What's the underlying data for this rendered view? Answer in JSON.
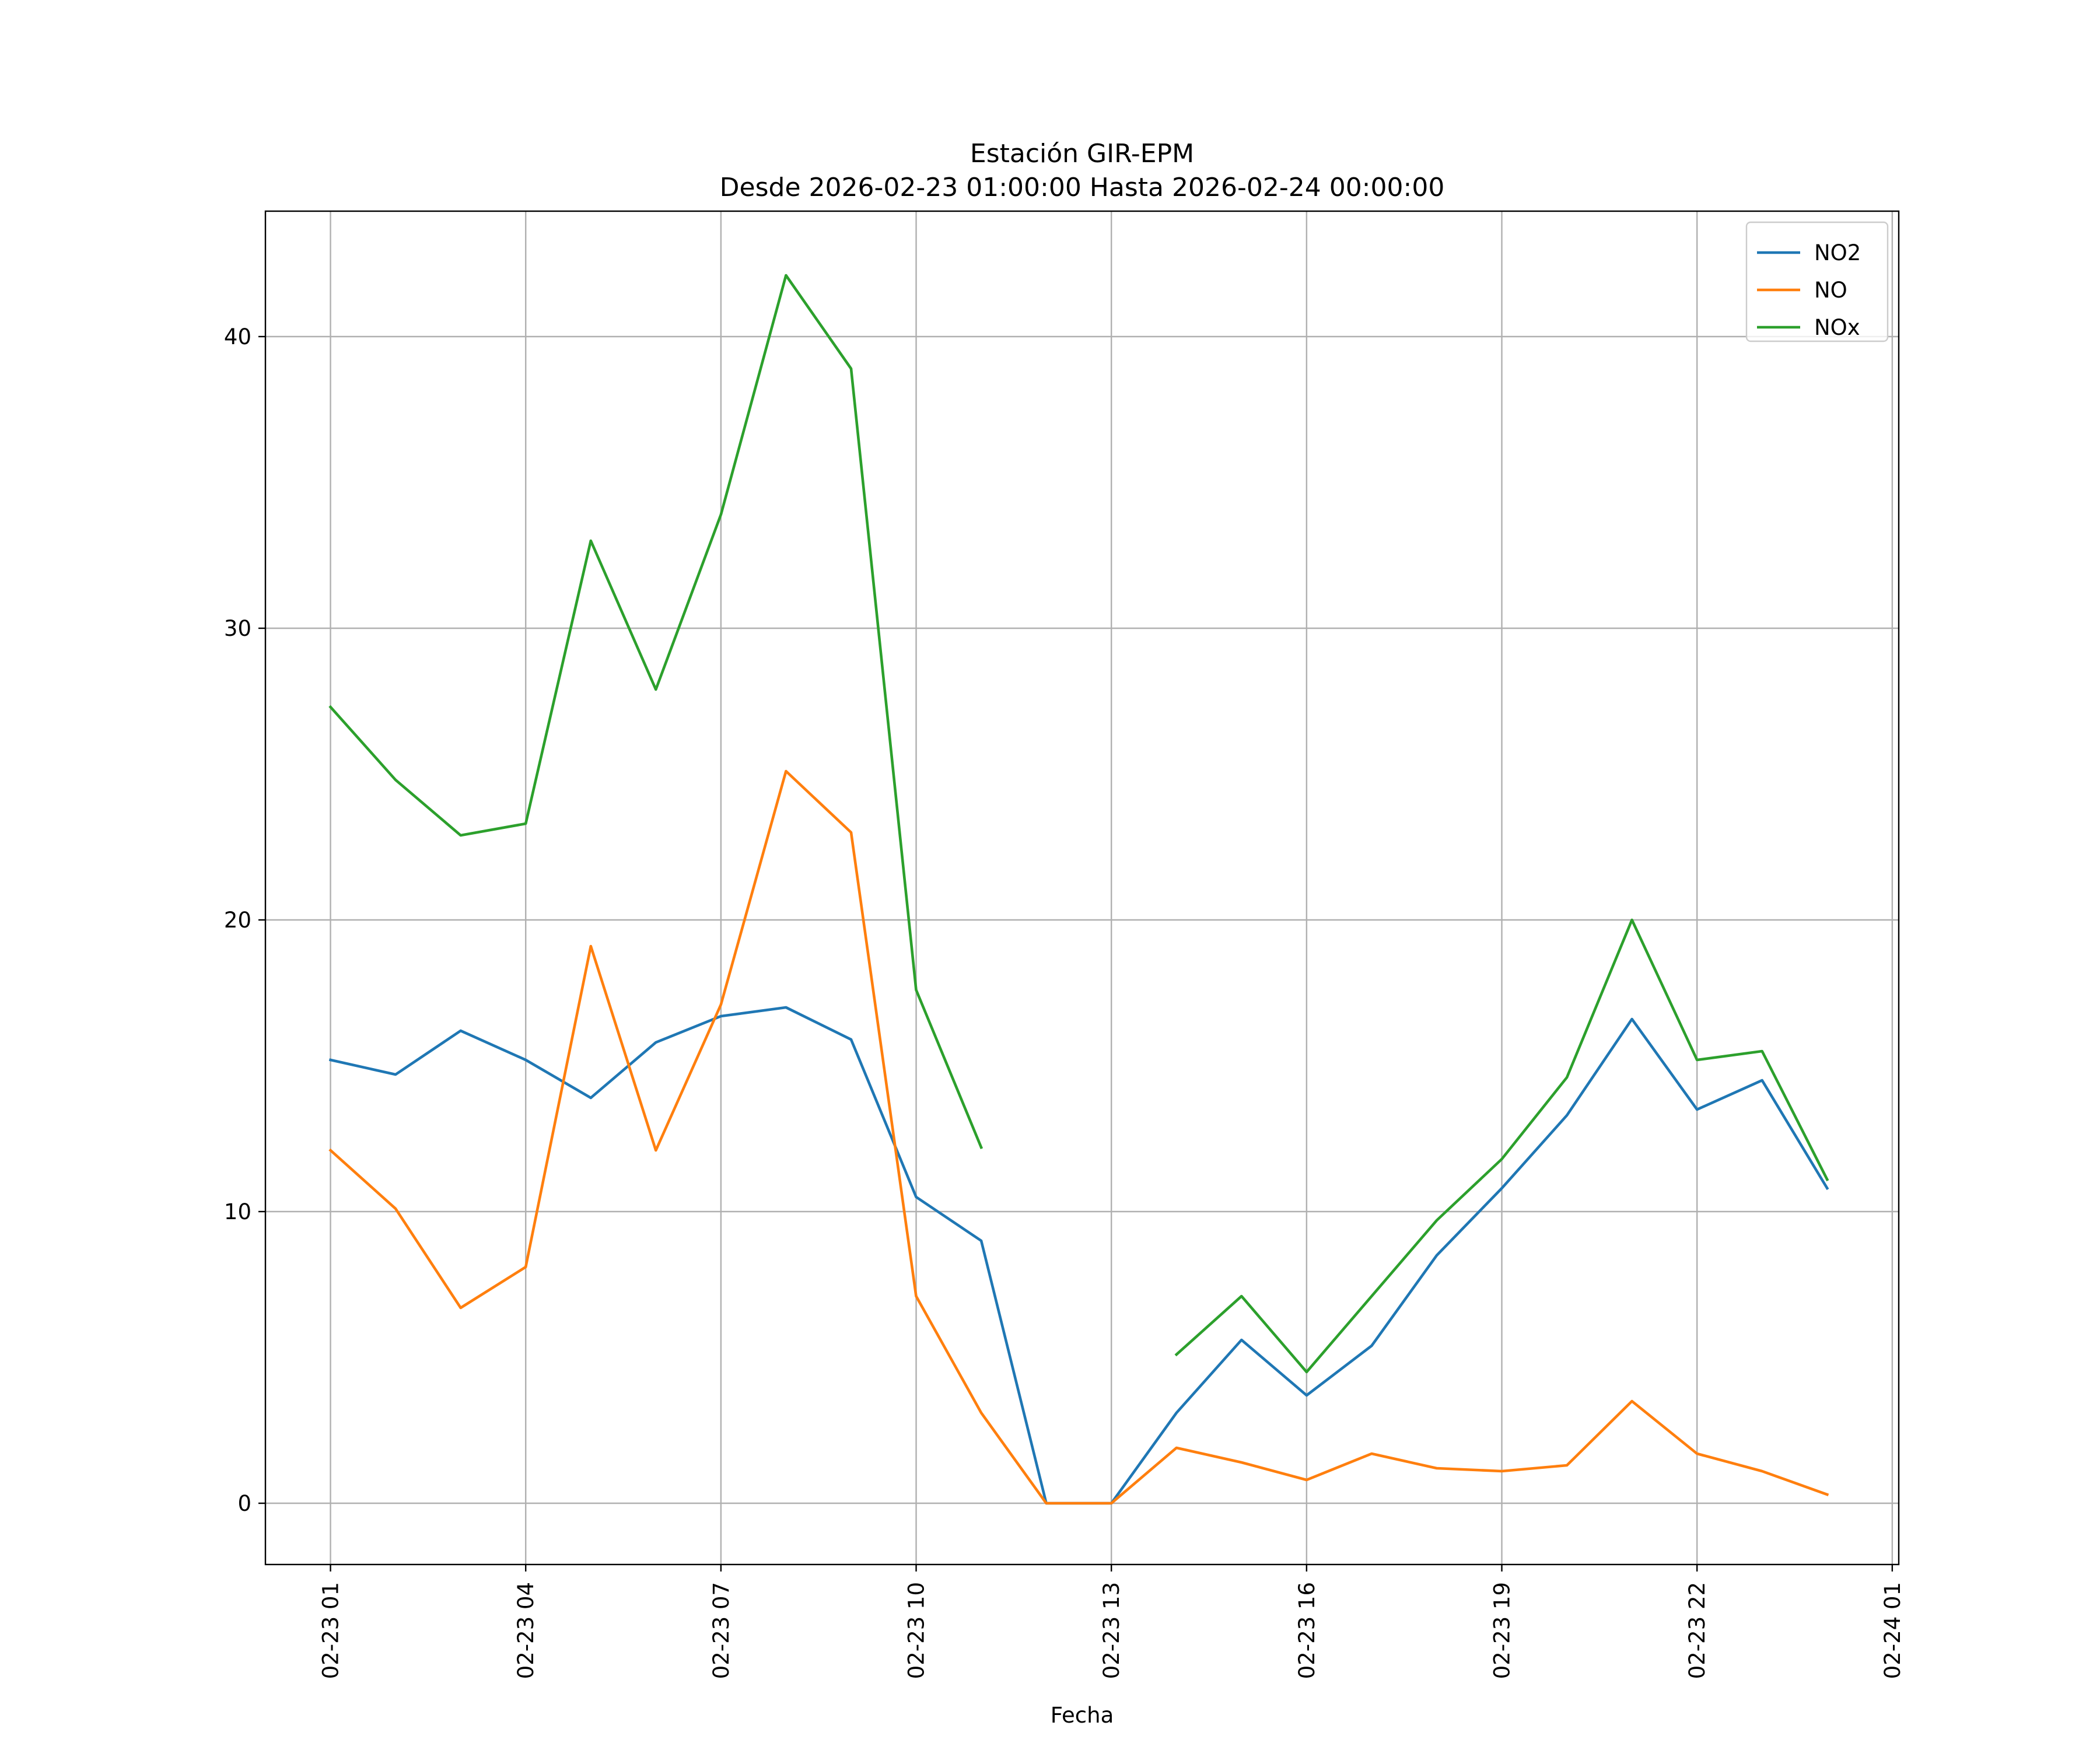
{
  "chart_data": {
    "type": "line",
    "title_lines": [
      "Estación GIR-EPM",
      "Desde 2026-02-23 01:00:00 Hasta 2026-02-24 00:00:00"
    ],
    "xlabel": "Fecha",
    "ylabel": "",
    "x_unit": "hours",
    "x": [
      "02-23 01",
      "02-23 02",
      "02-23 03",
      "02-23 04",
      "02-23 05",
      "02-23 06",
      "02-23 07",
      "02-23 08",
      "02-23 09",
      "02-23 10",
      "02-23 11",
      "02-23 12",
      "02-23 13",
      "02-23 14",
      "02-23 15",
      "02-23 16",
      "02-23 17",
      "02-23 18",
      "02-23 19",
      "02-23 20",
      "02-23 21",
      "02-23 22",
      "02-23 23",
      "02-24 00"
    ],
    "xlim": [
      "02-23 00:00",
      "02-24 01:06"
    ],
    "ylim": [
      -2.1,
      44.3
    ],
    "x_ticks": [
      "02-23 01",
      "02-23 04",
      "02-23 07",
      "02-23 10",
      "02-23 13",
      "02-23 16",
      "02-23 19",
      "02-23 22",
      "02-24 01"
    ],
    "y_ticks": [
      0,
      10,
      20,
      30,
      40
    ],
    "grid": true,
    "legend_position": "upper right",
    "series": [
      {
        "name": "NO2",
        "color": "#1f77b4",
        "values": [
          15.2,
          14.7,
          16.2,
          15.2,
          13.9,
          15.8,
          16.7,
          17.0,
          15.9,
          10.5,
          9.0,
          0.0,
          0.0,
          3.1,
          5.6,
          3.7,
          5.4,
          8.5,
          10.8,
          13.3,
          16.6,
          13.5,
          14.5,
          10.8
        ]
      },
      {
        "name": "NO",
        "color": "#ff7f0e",
        "values": [
          12.1,
          10.1,
          6.7,
          8.1,
          19.1,
          12.1,
          17.1,
          25.1,
          23.0,
          7.1,
          3.1,
          0.0,
          0.0,
          1.9,
          1.4,
          0.8,
          1.7,
          1.2,
          1.1,
          1.3,
          3.5,
          1.7,
          1.1,
          0.3
        ]
      },
      {
        "name": "NOx",
        "color": "#2ca02c",
        "values": [
          27.3,
          24.8,
          22.9,
          23.3,
          33.0,
          27.9,
          33.9,
          42.1,
          38.9,
          17.6,
          12.2,
          null,
          null,
          5.1,
          7.1,
          4.5,
          7.1,
          9.7,
          11.8,
          14.6,
          20.0,
          15.2,
          15.5,
          11.1
        ]
      }
    ]
  }
}
